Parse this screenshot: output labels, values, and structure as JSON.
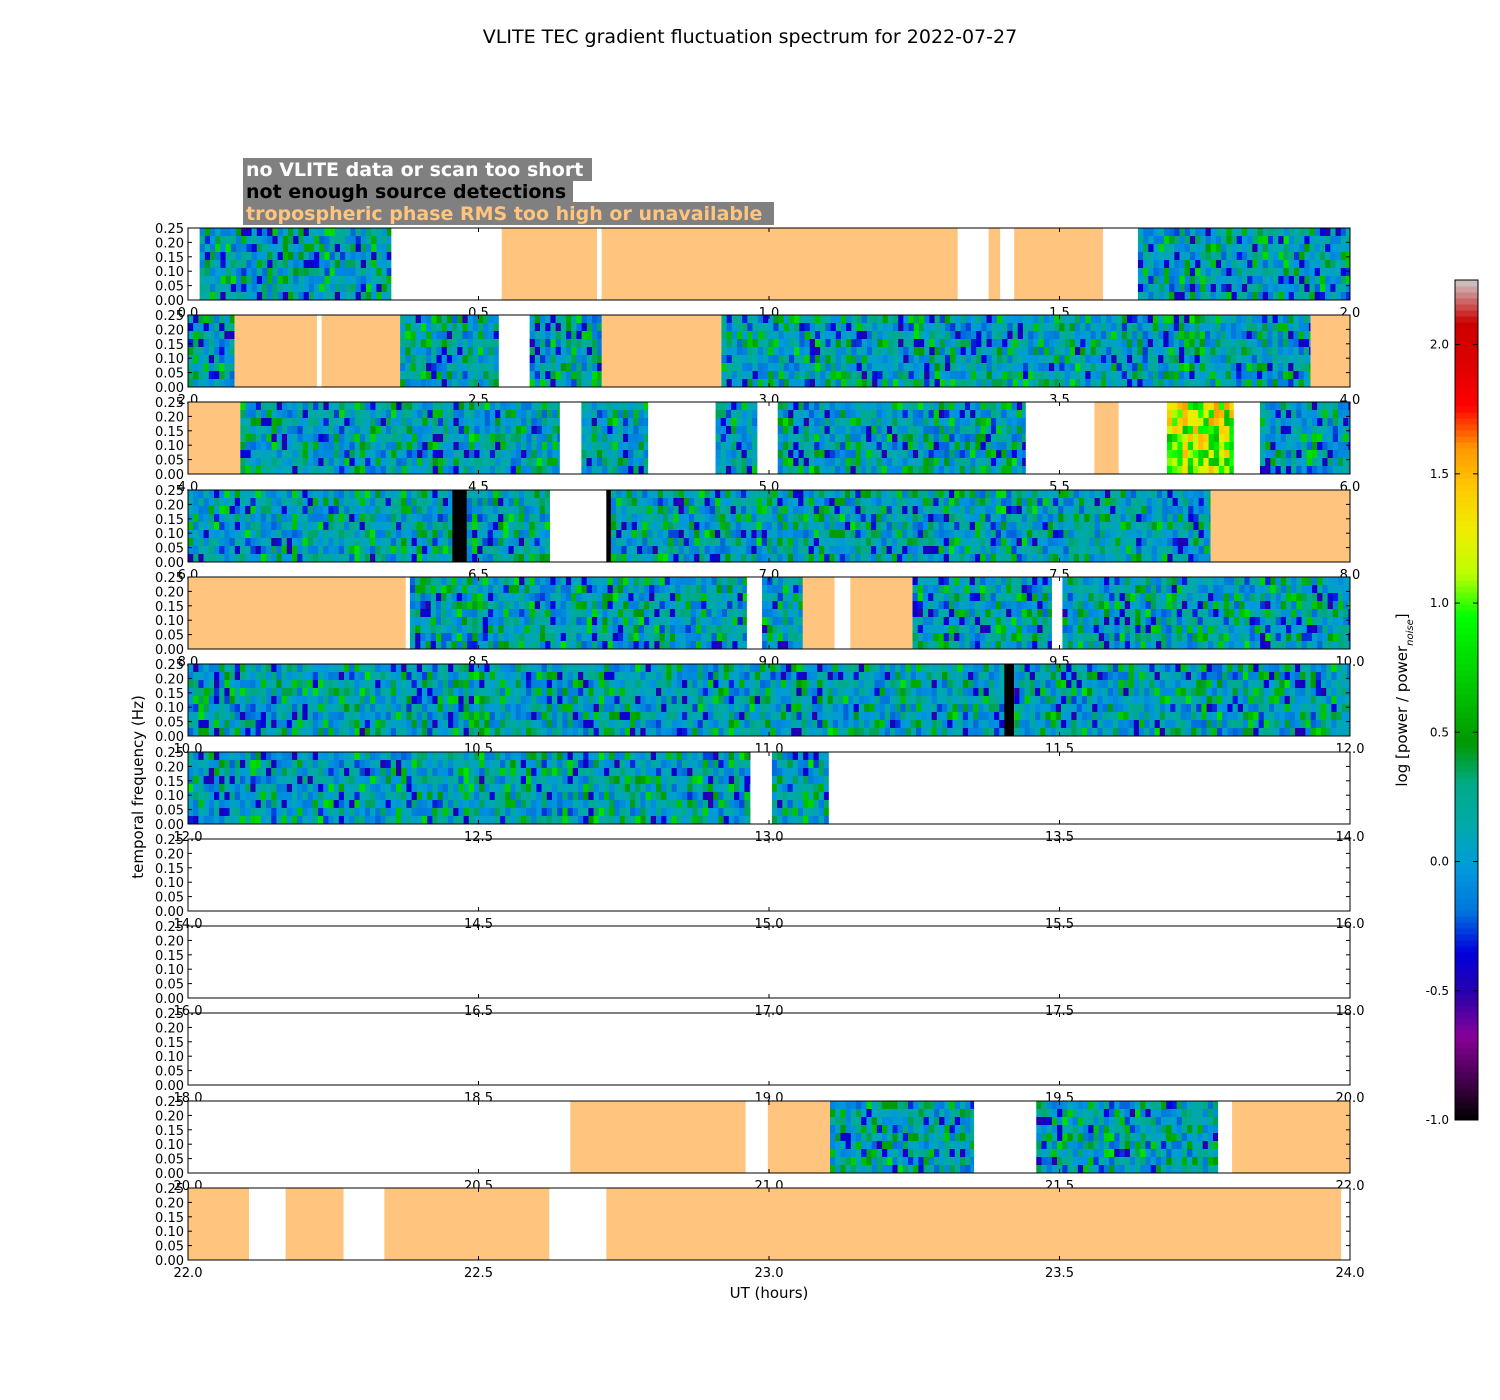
{
  "chart_data": {
    "type": "heatmap",
    "title": "VLITE TEC gradient fluctuation spectrum for 2022-07-27",
    "xlabel": "UT (hours)",
    "ylabel": "temporal frequency (Hz)",
    "ylim": [
      0,
      0.25
    ],
    "y_ticks": [
      "0.00",
      "0.05",
      "0.10",
      "0.15",
      "0.20",
      "0.25"
    ],
    "legend": [
      {
        "text": "no VLITE data or scan too short",
        "color": "#ffffff",
        "category": "white"
      },
      {
        "text": "not enough source detections",
        "color": "#000000",
        "category": "black"
      },
      {
        "text": "tropospheric phase RMS too high or unavailable",
        "color": "#ffc57f",
        "category": "tan"
      }
    ],
    "legend_box_color": "#808080",
    "colorbar": {
      "label_main": "log [power / power",
      "label_sub": "noise",
      "label_end": "]",
      "range": [
        -1.0,
        2.25
      ],
      "ticks": [
        "-1.0",
        "-0.5",
        "0.0",
        "0.5",
        "1.0",
        "1.5",
        "2.0"
      ],
      "colormap": "nipy_spectral"
    },
    "panels": [
      {
        "xlim": [
          0,
          2
        ],
        "xticks": [
          "0.0",
          "0.5",
          "1.0",
          "1.5",
          "2.0"
        ],
        "segments": [
          [
            0.02,
            0.35,
            "data"
          ],
          [
            0.35,
            0.54,
            "white"
          ],
          [
            0.54,
            0.704,
            "tan"
          ],
          [
            0.704,
            0.712,
            "white"
          ],
          [
            0.712,
            1.325,
            "tan"
          ],
          [
            1.325,
            1.378,
            "white"
          ],
          [
            1.378,
            1.398,
            "tan"
          ],
          [
            1.398,
            1.422,
            "white"
          ],
          [
            1.422,
            1.575,
            "tan"
          ],
          [
            1.575,
            1.635,
            "white"
          ],
          [
            1.635,
            2.0,
            "data"
          ]
        ]
      },
      {
        "xlim": [
          2,
          4
        ],
        "xticks": [
          "2.0",
          "2.5",
          "3.0",
          "3.5",
          "4.0"
        ],
        "segments": [
          [
            2.0,
            2.08,
            "data"
          ],
          [
            2.08,
            2.222,
            "tan"
          ],
          [
            2.222,
            2.23,
            "white"
          ],
          [
            2.23,
            2.365,
            "tan"
          ],
          [
            2.365,
            2.535,
            "data"
          ],
          [
            2.535,
            2.588,
            "white"
          ],
          [
            2.588,
            2.712,
            "data"
          ],
          [
            2.712,
            2.918,
            "tan"
          ],
          [
            2.918,
            3.932,
            "data"
          ],
          [
            3.932,
            4.0,
            "tan"
          ]
        ]
      },
      {
        "xlim": [
          4,
          6
        ],
        "xticks": [
          "4.0",
          "4.5",
          "5.0",
          "5.5",
          "6.0"
        ],
        "segments": [
          [
            4.0,
            4.09,
            "tan"
          ],
          [
            4.09,
            4.64,
            "data"
          ],
          [
            4.64,
            4.677,
            "white"
          ],
          [
            4.677,
            4.792,
            "data"
          ],
          [
            4.792,
            4.908,
            "white"
          ],
          [
            4.908,
            4.98,
            "data"
          ],
          [
            4.98,
            5.015,
            "white"
          ],
          [
            5.015,
            5.442,
            "data"
          ],
          [
            5.442,
            5.56,
            "white"
          ],
          [
            5.56,
            5.602,
            "tan"
          ],
          [
            5.602,
            5.685,
            "white"
          ],
          [
            5.685,
            5.8,
            "data",
            "hot"
          ],
          [
            5.8,
            5.845,
            "white"
          ],
          [
            5.845,
            6.0,
            "data"
          ]
        ]
      },
      {
        "xlim": [
          6,
          8
        ],
        "xticks": [
          "6.0",
          "6.5",
          "7.0",
          "7.5",
          "8.0"
        ],
        "segments": [
          [
            6.0,
            6.455,
            "data"
          ],
          [
            6.455,
            6.48,
            "black"
          ],
          [
            6.48,
            6.623,
            "data"
          ],
          [
            6.623,
            6.72,
            "white"
          ],
          [
            6.72,
            6.728,
            "black"
          ],
          [
            6.728,
            7.76,
            "data"
          ],
          [
            7.76,
            8.0,
            "tan"
          ]
        ]
      },
      {
        "xlim": [
          8,
          10
        ],
        "xticks": [
          "8.0",
          "8.5",
          "9.0",
          "9.5",
          "10.0"
        ],
        "segments": [
          [
            8.0,
            8.375,
            "tan"
          ],
          [
            8.375,
            8.382,
            "white"
          ],
          [
            8.382,
            8.962,
            "data"
          ],
          [
            8.962,
            8.988,
            "white"
          ],
          [
            8.988,
            9.058,
            "data"
          ],
          [
            9.058,
            9.113,
            "tan"
          ],
          [
            9.113,
            9.14,
            "white"
          ],
          [
            9.14,
            9.247,
            "tan"
          ],
          [
            9.247,
            9.487,
            "data"
          ],
          [
            9.487,
            9.505,
            "white"
          ],
          [
            9.505,
            10.0,
            "data"
          ]
        ]
      },
      {
        "xlim": [
          10,
          12
        ],
        "xticks": [
          "10.0",
          "10.5",
          "11.0",
          "11.5",
          "12.0"
        ],
        "segments": [
          [
            10.0,
            11.405,
            "data"
          ],
          [
            11.405,
            11.422,
            "black"
          ],
          [
            11.422,
            12.0,
            "data"
          ]
        ]
      },
      {
        "xlim": [
          12,
          14
        ],
        "xticks": [
          "12.0",
          "12.5",
          "13.0",
          "13.5",
          "14.0"
        ],
        "segments": [
          [
            12.0,
            12.968,
            "data"
          ],
          [
            12.968,
            13.005,
            "white"
          ],
          [
            13.005,
            13.103,
            "data"
          ],
          [
            13.103,
            14.0,
            "white"
          ]
        ]
      },
      {
        "xlim": [
          14,
          16
        ],
        "xticks": [
          "14.0",
          "14.5",
          "15.0",
          "15.5",
          "16.0"
        ],
        "segments": []
      },
      {
        "xlim": [
          16,
          18
        ],
        "xticks": [
          "16.0",
          "16.5",
          "17.0",
          "17.5",
          "18.0"
        ],
        "segments": []
      },
      {
        "xlim": [
          18,
          20
        ],
        "xticks": [
          "18.0",
          "18.5",
          "19.0",
          "19.5",
          "20.0"
        ],
        "segments": []
      },
      {
        "xlim": [
          20,
          22
        ],
        "xticks": [
          "20.0",
          "20.5",
          "21.0",
          "21.5",
          "22.0"
        ],
        "segments": [
          [
            20.0,
            20.658,
            "white"
          ],
          [
            20.658,
            20.96,
            "tan"
          ],
          [
            20.96,
            20.998,
            "white"
          ],
          [
            20.998,
            21.105,
            "tan"
          ],
          [
            21.105,
            21.353,
            "data"
          ],
          [
            21.353,
            21.46,
            "white"
          ],
          [
            21.46,
            21.773,
            "data"
          ],
          [
            21.773,
            21.797,
            "white"
          ],
          [
            21.797,
            22.0,
            "tan"
          ]
        ]
      },
      {
        "xlim": [
          22,
          24
        ],
        "xticks": [
          "22.0",
          "22.5",
          "23.0",
          "23.5",
          "24.0"
        ],
        "segments": [
          [
            22.0,
            22.105,
            "tan"
          ],
          [
            22.105,
            22.168,
            "white"
          ],
          [
            22.168,
            22.268,
            "tan"
          ],
          [
            22.268,
            22.338,
            "white"
          ],
          [
            22.338,
            22.622,
            "tan"
          ],
          [
            22.622,
            22.72,
            "white"
          ],
          [
            22.72,
            23.985,
            "tan"
          ],
          [
            23.985,
            24.0,
            "white"
          ]
        ]
      }
    ]
  }
}
